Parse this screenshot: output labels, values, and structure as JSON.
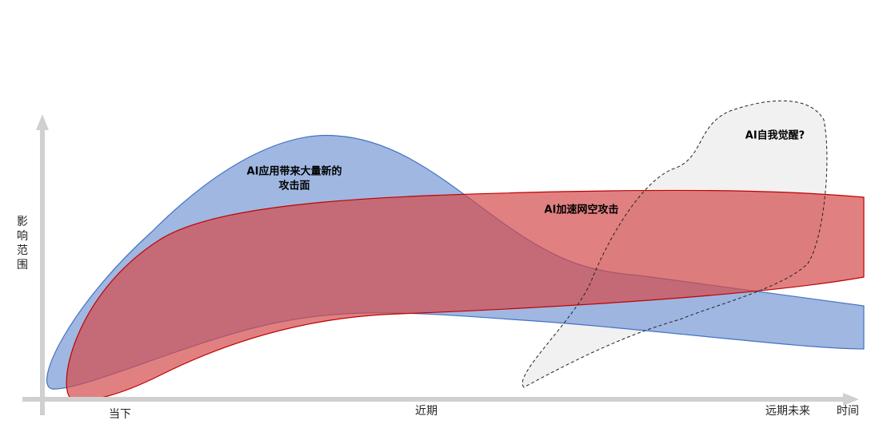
{
  "y_axis_label": "影响范围",
  "x_axis": {
    "labels": [
      "当下",
      "近期",
      "远期未来"
    ],
    "title": "时间"
  },
  "regions": [
    {
      "lines": [
        "AI应用带来大量新的",
        "攻击面"
      ]
    },
    {
      "lines": [
        "AI加速网空攻击"
      ]
    },
    {
      "lines": [
        "AI自我觉醒?"
      ]
    }
  ]
}
